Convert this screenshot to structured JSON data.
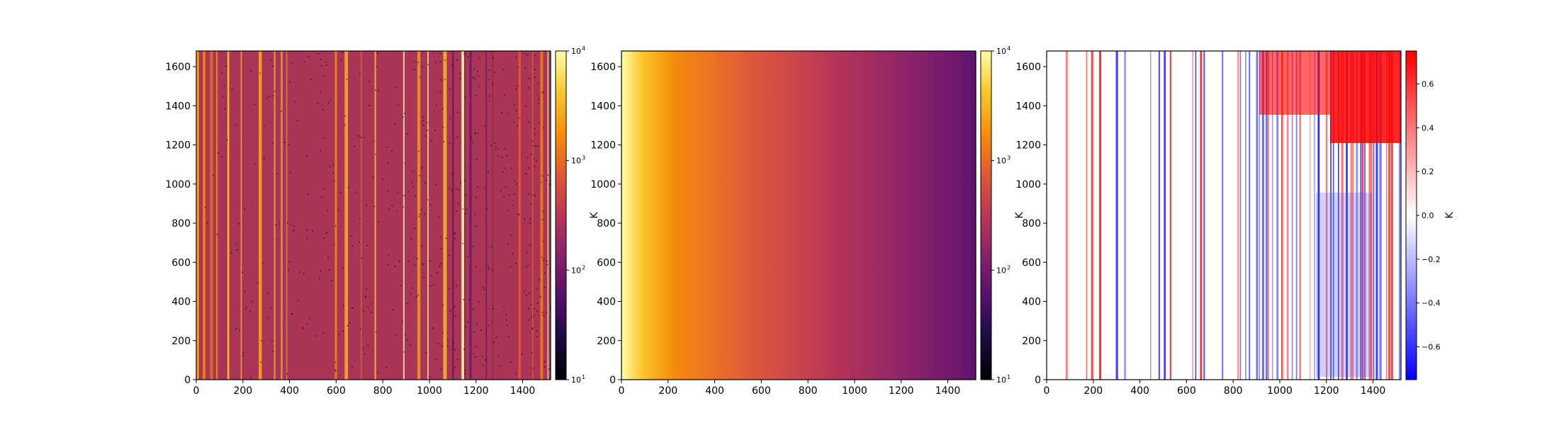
{
  "chart_data": [
    {
      "type": "heatmap",
      "xlim": [
        0,
        1520
      ],
      "ylim": [
        0,
        1680
      ],
      "xticks": [
        "0",
        "200",
        "400",
        "600",
        "800",
        "1000",
        "1200",
        "1400"
      ],
      "yticks": [
        "0",
        "200",
        "400",
        "600",
        "800",
        "1000",
        "1200",
        "1400",
        "1600"
      ],
      "ylabel": "",
      "colormap": "inferno",
      "color_scale": "log",
      "clim": [
        10,
        10000
      ],
      "colorbar_ticks": [
        "10",
        "10",
        "10",
        "10"
      ],
      "colorbar_exponents": [
        "1",
        "2",
        "3",
        "4"
      ],
      "colorbar_label": ""
    },
    {
      "type": "heatmap",
      "xlim": [
        0,
        1520
      ],
      "ylim": [
        0,
        1680
      ],
      "xticks": [
        "0",
        "200",
        "400",
        "600",
        "800",
        "1000",
        "1200",
        "1400"
      ],
      "yticks": [
        "0",
        "200",
        "400",
        "600",
        "800",
        "1000",
        "1200",
        "1400",
        "1600"
      ],
      "ylabel": "K",
      "colormap": "inferno",
      "color_scale": "log",
      "clim": [
        10,
        10000
      ],
      "colorbar_ticks": [
        "10",
        "10",
        "10",
        "10"
      ],
      "colorbar_exponents": [
        "1",
        "2",
        "3",
        "4"
      ],
      "colorbar_label": ""
    },
    {
      "type": "heatmap",
      "xlim": [
        0,
        1520
      ],
      "ylim": [
        0,
        1680
      ],
      "xticks": [
        "0",
        "200",
        "400",
        "600",
        "800",
        "1000",
        "1200",
        "1400"
      ],
      "yticks": [
        "0",
        "200",
        "400",
        "600",
        "800",
        "1000",
        "1200",
        "1400",
        "1600"
      ],
      "ylabel": "K",
      "colormap": "bwr",
      "color_scale": "linear",
      "clim": [
        -0.75,
        0.75
      ],
      "colorbar_ticks": [
        "−0.6",
        "−0.4",
        "−0.2",
        "0.0",
        "0.2",
        "0.4",
        "0.6"
      ],
      "colorbar_exponents": [],
      "colorbar_label": "K"
    }
  ]
}
